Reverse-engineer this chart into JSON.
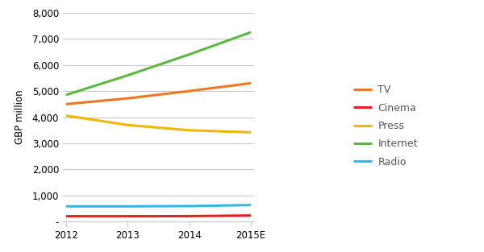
{
  "years": [
    2012,
    2013,
    2014,
    2015
  ],
  "year_labels": [
    "2012",
    "2013",
    "2014",
    "2015E"
  ],
  "series": {
    "TV": {
      "values": [
        4500,
        4720,
        5000,
        5300
      ],
      "color": "#F07820"
    },
    "Cinema": {
      "values": [
        210,
        210,
        215,
        240
      ],
      "color": "#E82020"
    },
    "Press": {
      "values": [
        4060,
        3700,
        3500,
        3420
      ],
      "color": "#F0B800"
    },
    "Internet": {
      "values": [
        4850,
        5600,
        6400,
        7250
      ],
      "color": "#5CB840"
    },
    "Radio": {
      "values": [
        590,
        590,
        600,
        640
      ],
      "color": "#30B8E8"
    }
  },
  "ylabel": "GBP million",
  "ylim": [
    0,
    8000
  ],
  "yticks": [
    0,
    1000,
    2000,
    3000,
    4000,
    5000,
    6000,
    7000,
    8000
  ],
  "ytick_labels": [
    "-",
    "1,000",
    "2,000",
    "3,000",
    "4,000",
    "5,000",
    "6,000",
    "7,000",
    "8,000"
  ],
  "background_color": "#ffffff",
  "grid_color": "#c8c8c8",
  "line_width": 2.2,
  "legend_order": [
    "TV",
    "Cinema",
    "Press",
    "Internet",
    "Radio"
  ],
  "legend_fontsize": 9,
  "axis_fontsize": 8.5
}
